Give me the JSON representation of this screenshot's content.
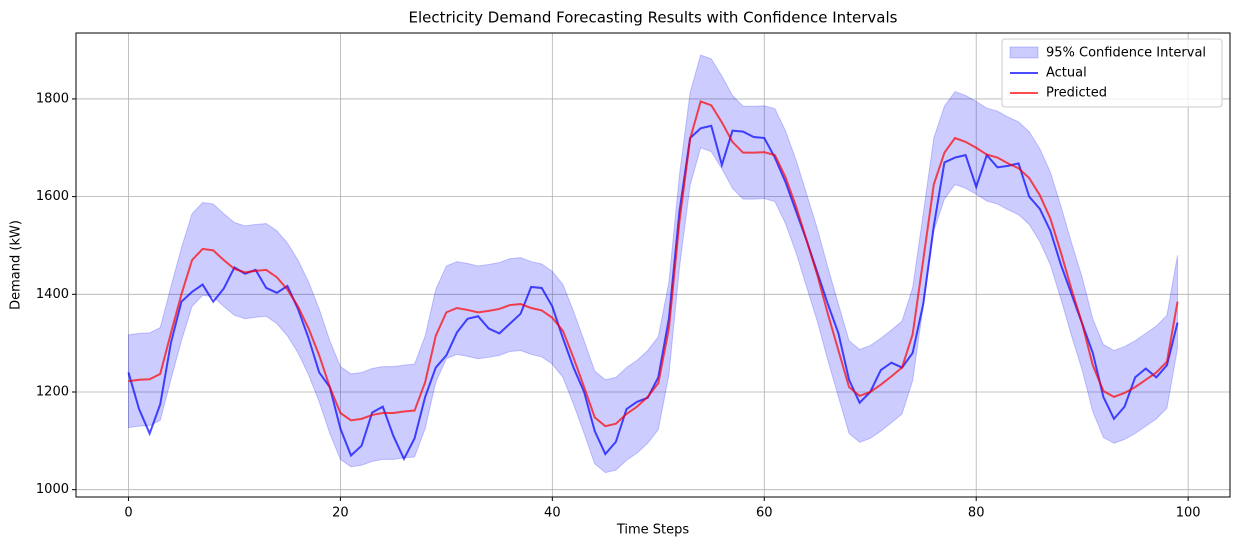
{
  "chart_data": {
    "type": "line",
    "title": "Electricity Demand Forecasting Results with Confidence Intervals",
    "x_label": "Time Steps",
    "y_label": "Demand (kW)",
    "x": [
      0,
      1,
      2,
      3,
      4,
      5,
      6,
      7,
      8,
      9,
      10,
      11,
      12,
      13,
      14,
      15,
      16,
      17,
      18,
      19,
      20,
      21,
      22,
      23,
      24,
      25,
      26,
      27,
      28,
      29,
      30,
      31,
      32,
      33,
      34,
      35,
      36,
      37,
      38,
      39,
      40,
      41,
      42,
      43,
      44,
      45,
      46,
      47,
      48,
      49,
      50,
      51,
      52,
      53,
      54,
      55,
      56,
      57,
      58,
      59,
      60,
      61,
      62,
      63,
      64,
      65,
      66,
      67,
      68,
      69,
      70,
      71,
      72,
      73,
      74,
      75,
      76,
      77,
      78,
      79,
      80,
      81,
      82,
      83,
      84,
      85,
      86,
      87,
      88,
      89,
      90,
      91,
      92,
      93,
      94,
      95,
      96,
      97,
      98,
      99
    ],
    "band": {
      "name": "95% Confidence Interval",
      "color": "#0000ff",
      "alpha": 0.2,
      "upper": [
        1317,
        1320,
        1321,
        1332,
        1415,
        1495,
        1565,
        1588,
        1585,
        1565,
        1547,
        1540,
        1543,
        1545,
        1530,
        1505,
        1470,
        1425,
        1370,
        1305,
        1252,
        1237,
        1240,
        1248,
        1252,
        1252,
        1255,
        1257,
        1315,
        1410,
        1458,
        1467,
        1463,
        1458,
        1461,
        1465,
        1473,
        1475,
        1467,
        1462,
        1447,
        1420,
        1365,
        1305,
        1243,
        1225,
        1230,
        1250,
        1265,
        1285,
        1313,
        1425,
        1645,
        1813,
        1890,
        1882,
        1847,
        1807,
        1785,
        1785,
        1786,
        1780,
        1735,
        1675,
        1605,
        1535,
        1455,
        1380,
        1305,
        1287,
        1295,
        1310,
        1327,
        1345,
        1413,
        1565,
        1720,
        1785,
        1815,
        1807,
        1795,
        1781,
        1775,
        1763,
        1753,
        1733,
        1698,
        1650,
        1580,
        1505,
        1435,
        1350,
        1297,
        1285,
        1293,
        1305,
        1320,
        1335,
        1357,
        1480
      ],
      "lower": [
        1127,
        1130,
        1131,
        1142,
        1225,
        1305,
        1375,
        1398,
        1395,
        1375,
        1357,
        1350,
        1353,
        1355,
        1340,
        1315,
        1280,
        1235,
        1180,
        1115,
        1062,
        1047,
        1050,
        1058,
        1062,
        1062,
        1065,
        1067,
        1125,
        1220,
        1268,
        1277,
        1273,
        1268,
        1271,
        1275,
        1283,
        1285,
        1277,
        1272,
        1257,
        1230,
        1175,
        1115,
        1053,
        1035,
        1040,
        1060,
        1075,
        1095,
        1123,
        1235,
        1455,
        1623,
        1700,
        1692,
        1657,
        1617,
        1595,
        1595,
        1596,
        1590,
        1545,
        1485,
        1415,
        1345,
        1265,
        1190,
        1115,
        1097,
        1105,
        1120,
        1137,
        1155,
        1223,
        1375,
        1530,
        1595,
        1625,
        1617,
        1605,
        1591,
        1585,
        1573,
        1563,
        1543,
        1508,
        1460,
        1390,
        1315,
        1245,
        1160,
        1107,
        1095,
        1103,
        1115,
        1130,
        1145,
        1167,
        1290
      ]
    },
    "series": [
      {
        "name": "Actual",
        "color": "#0000ff",
        "alpha": 0.7,
        "values": [
          1240,
          1165,
          1115,
          1175,
          1300,
          1385,
          1405,
          1420,
          1385,
          1412,
          1455,
          1442,
          1450,
          1413,
          1403,
          1417,
          1370,
          1310,
          1240,
          1210,
          1125,
          1070,
          1090,
          1158,
          1170,
          1110,
          1063,
          1105,
          1190,
          1250,
          1275,
          1322,
          1350,
          1355,
          1330,
          1320,
          1340,
          1360,
          1415,
          1413,
          1375,
          1310,
          1250,
          1200,
          1120,
          1073,
          1098,
          1165,
          1180,
          1188,
          1230,
          1350,
          1570,
          1720,
          1740,
          1745,
          1665,
          1735,
          1733,
          1722,
          1720,
          1680,
          1630,
          1570,
          1510,
          1445,
          1380,
          1320,
          1225,
          1178,
          1200,
          1245,
          1260,
          1250,
          1280,
          1380,
          1540,
          1670,
          1680,
          1685,
          1620,
          1685,
          1660,
          1663,
          1668,
          1600,
          1575,
          1530,
          1460,
          1400,
          1340,
          1280,
          1190,
          1145,
          1170,
          1230,
          1248,
          1230,
          1255,
          1342
        ]
      },
      {
        "name": "Predicted",
        "color": "#ff0000",
        "alpha": 0.7,
        "values": [
          1222,
          1225,
          1226,
          1237,
          1320,
          1400,
          1470,
          1493,
          1490,
          1470,
          1452,
          1445,
          1448,
          1450,
          1435,
          1410,
          1375,
          1330,
          1275,
          1210,
          1157,
          1142,
          1145,
          1153,
          1157,
          1157,
          1160,
          1162,
          1220,
          1315,
          1363,
          1372,
          1368,
          1363,
          1366,
          1370,
          1378,
          1380,
          1372,
          1367,
          1352,
          1325,
          1270,
          1210,
          1148,
          1130,
          1135,
          1155,
          1170,
          1190,
          1218,
          1330,
          1550,
          1718,
          1795,
          1787,
          1752,
          1712,
          1690,
          1690,
          1691,
          1685,
          1640,
          1580,
          1510,
          1440,
          1360,
          1285,
          1210,
          1192,
          1200,
          1215,
          1232,
          1250,
          1318,
          1470,
          1625,
          1690,
          1720,
          1712,
          1700,
          1686,
          1680,
          1668,
          1658,
          1638,
          1603,
          1555,
          1485,
          1410,
          1340,
          1255,
          1202,
          1190,
          1198,
          1210,
          1225,
          1240,
          1262,
          1385
        ]
      }
    ],
    "xlim": [
      -4.95,
      103.95
    ],
    "ylim": [
      985,
      1935
    ],
    "xticks": [
      0,
      20,
      40,
      60,
      80,
      100
    ],
    "yticks": [
      1000,
      1200,
      1400,
      1600,
      1800
    ],
    "grid": true,
    "legend": "upper right"
  }
}
